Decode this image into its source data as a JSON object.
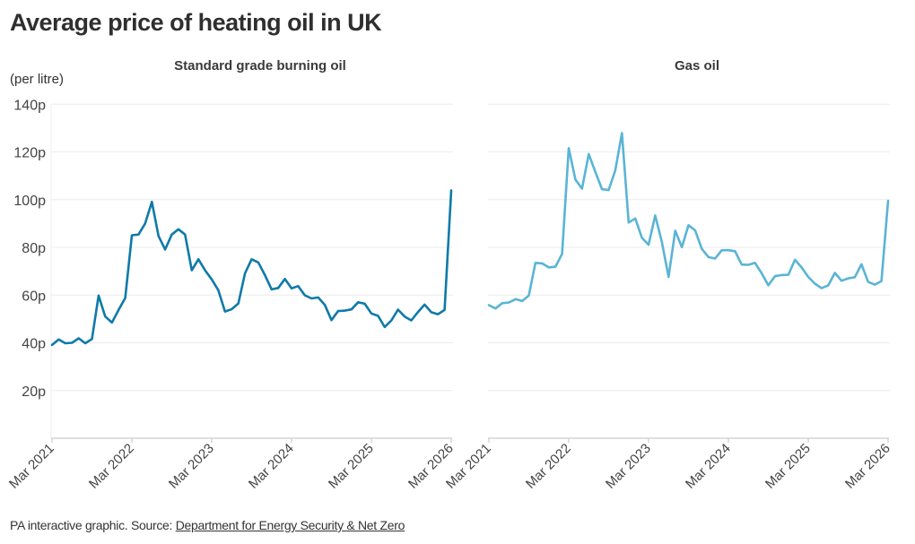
{
  "title": "Average price of heating oil in UK",
  "unit_label": "(per litre)",
  "footer": {
    "prefix": "PA interactive graphic. Source: ",
    "source_link": "Department for Energy Security & Net Zero"
  },
  "colors": {
    "standard": "#0f7aa8",
    "gas_oil": "#5ab4d6",
    "grid": "#ececec",
    "axis": "#cccccc"
  },
  "chart_data": [
    {
      "type": "line",
      "title": "Standard grade burning oil",
      "xlabel": "",
      "ylabel": "(per litre)",
      "x_start": "Mar 2021",
      "x_end": "Mar 2026",
      "x_frequency": "monthly",
      "x_ticks": [
        "Mar 2021",
        "Mar 2022",
        "Mar 2023",
        "Mar 2024",
        "Mar 2025",
        "Mar 2026"
      ],
      "y_ticks": [
        "20p",
        "40p",
        "60p",
        "80p",
        "100p",
        "120p",
        "140p"
      ],
      "y_tick_values": [
        20,
        40,
        60,
        80,
        100,
        120,
        140
      ],
      "ylim": [
        0,
        140
      ],
      "grid": true,
      "series": [
        {
          "name": "Standard grade burning oil",
          "values": [
            39.1,
            41.4,
            39.8,
            40.0,
            41.9,
            39.8,
            41.6,
            59.8,
            51.0,
            48.5,
            53.8,
            58.8,
            85.1,
            85.4,
            90.0,
            99.1,
            84.8,
            79.1,
            85.4,
            87.6,
            85.4,
            70.4,
            75.0,
            70.4,
            66.6,
            62.0,
            53.1,
            54.1,
            56.5,
            69.1,
            75.0,
            73.7,
            68.4,
            62.4,
            63.0,
            66.8,
            62.8,
            63.8,
            59.9,
            58.6,
            59.0,
            55.9,
            49.5,
            53.3,
            53.5,
            54.0,
            57.0,
            56.4,
            52.3,
            51.3,
            46.6,
            49.4,
            53.9,
            51.0,
            49.4,
            52.9,
            56.0,
            52.8,
            52.0,
            53.8,
            103.9
          ]
        }
      ]
    },
    {
      "type": "line",
      "title": "Gas oil",
      "xlabel": "",
      "ylabel": "",
      "x_start": "Mar 2021",
      "x_end": "Mar 2026",
      "x_frequency": "monthly",
      "x_ticks": [
        "Mar 2021",
        "Mar 2022",
        "Mar 2023",
        "Mar 2024",
        "Mar 2025",
        "Mar 2026"
      ],
      "y_tick_values": [
        20,
        40,
        60,
        80,
        100,
        120,
        140
      ],
      "ylim": [
        0,
        140
      ],
      "grid": true,
      "series": [
        {
          "name": "Gas oil",
          "values": [
            55.8,
            54.4,
            56.6,
            56.9,
            58.3,
            57.5,
            59.8,
            73.5,
            73.3,
            71.6,
            71.9,
            77.3,
            121.6,
            108.5,
            104.6,
            119.1,
            111.6,
            104.4,
            104.0,
            112.3,
            127.9,
            90.4,
            92.1,
            84.0,
            81.1,
            93.4,
            82.3,
            67.6,
            87.0,
            80.1,
            89.3,
            87.1,
            79.4,
            75.9,
            75.3,
            78.8,
            78.8,
            78.4,
            72.8,
            72.7,
            73.5,
            69.1,
            64.1,
            67.9,
            68.4,
            68.5,
            74.8,
            71.6,
            67.6,
            64.8,
            62.9,
            64.1,
            69.3,
            66.0,
            67.0,
            67.5,
            72.9,
            65.5,
            64.4,
            65.9,
            99.5
          ]
        }
      ]
    }
  ]
}
